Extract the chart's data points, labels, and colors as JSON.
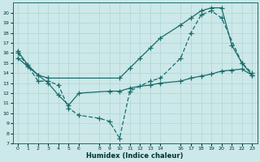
{
  "xlabel": "Humidex (Indice chaleur)",
  "bg_color": "#cce8e8",
  "grid_color": "#b0d4d4",
  "line_color": "#1a6b6b",
  "line1_x": [
    0,
    1,
    2,
    3,
    10,
    11,
    12,
    13,
    14,
    16,
    17,
    18,
    19,
    20,
    21,
    22,
    23
  ],
  "line1_y": [
    16.2,
    14.8,
    13.8,
    13.5,
    13.5,
    14.5,
    15.5,
    16.5,
    17.5,
    18.8,
    19.5,
    20.2,
    20.5,
    20.5,
    16.8,
    15.0,
    13.8
  ],
  "line2_x": [
    0,
    1,
    2,
    3,
    4,
    5,
    6,
    8,
    9,
    10,
    11,
    13,
    14,
    16,
    17,
    18,
    19,
    20,
    22,
    23
  ],
  "line2_y": [
    16.0,
    14.7,
    13.2,
    13.2,
    12.8,
    10.5,
    9.8,
    9.5,
    9.2,
    7.5,
    12.2,
    13.2,
    13.5,
    15.5,
    18.0,
    19.8,
    20.2,
    19.5,
    15.0,
    14.0
  ],
  "line3_x": [
    0,
    2,
    3,
    4,
    5,
    6,
    9,
    10,
    11,
    12,
    13,
    14,
    16,
    17,
    18,
    19,
    20,
    21,
    22,
    23
  ],
  "line3_y": [
    15.5,
    13.8,
    13.0,
    11.8,
    10.8,
    12.0,
    12.2,
    12.2,
    12.5,
    12.7,
    12.8,
    13.0,
    13.2,
    13.5,
    13.7,
    13.9,
    14.2,
    14.3,
    14.4,
    13.8
  ],
  "xlim": [
    -0.5,
    23.5
  ],
  "ylim": [
    7,
    21
  ],
  "yticks": [
    7,
    8,
    9,
    10,
    11,
    12,
    13,
    14,
    15,
    16,
    17,
    18,
    19,
    20
  ],
  "xticks": [
    0,
    1,
    2,
    3,
    4,
    5,
    6,
    8,
    9,
    10,
    11,
    12,
    13,
    14,
    16,
    17,
    18,
    19,
    20,
    21,
    22,
    23
  ],
  "figsize": [
    3.2,
    2.0
  ],
  "dpi": 100
}
